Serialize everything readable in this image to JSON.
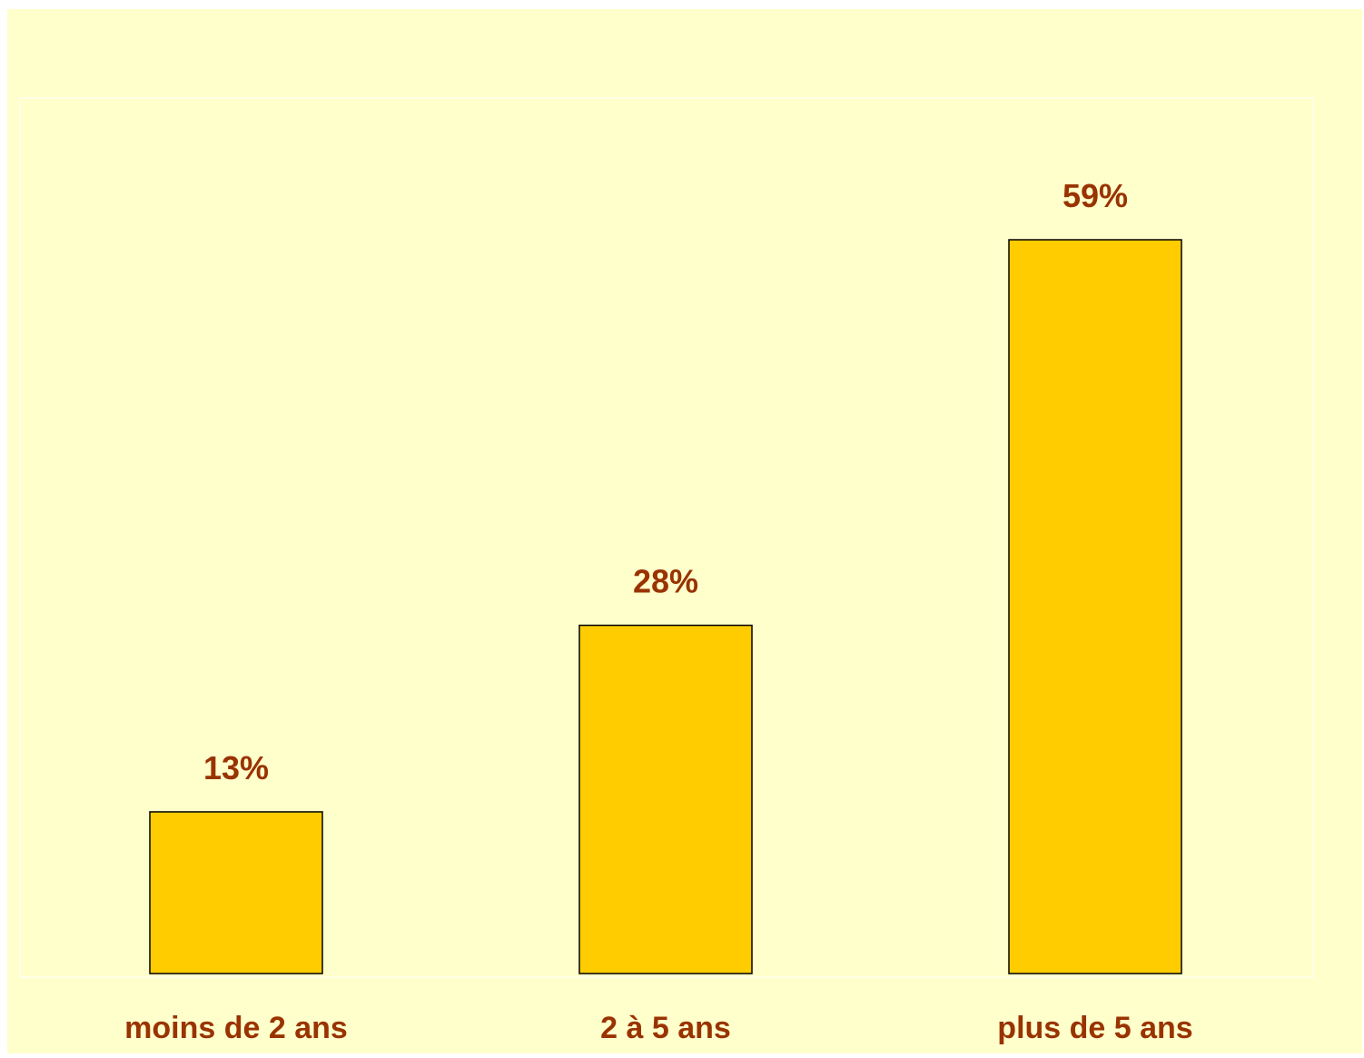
{
  "chart_data": {
    "type": "bar",
    "title": "",
    "xlabel": "",
    "ylabel": "",
    "categories": [
      "moins de 2 ans",
      "2 à 5 ans",
      "plus de 5 ans"
    ],
    "values": [
      13,
      28,
      59
    ],
    "value_labels": [
      "13%",
      "28%",
      "59%"
    ],
    "ylim": [
      0,
      59
    ],
    "grid": false,
    "legend": "none",
    "colors": {
      "background": "#FFFFCC",
      "plot_border": "#FFFFE8",
      "bar_fill": "#FFCC00",
      "bar_stroke": "#000000",
      "text": "#993300"
    }
  }
}
